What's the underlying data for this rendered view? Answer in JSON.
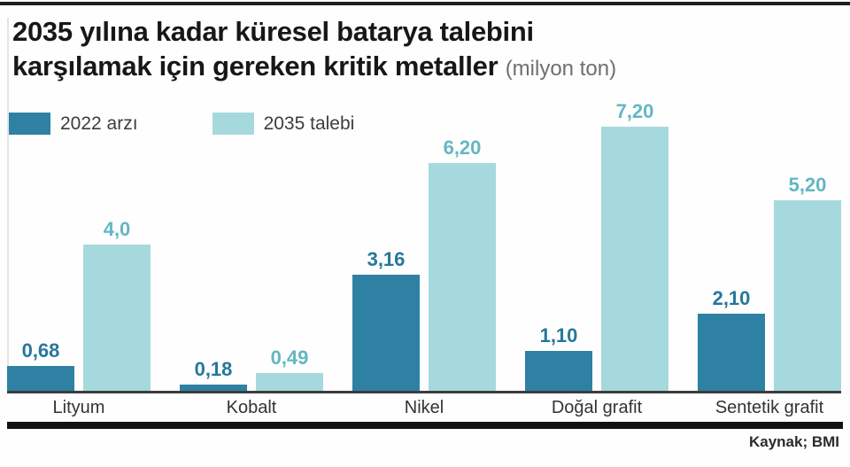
{
  "header": {
    "title_line1": "2035 yılına kadar küresel batarya talebini",
    "title_line2": "karşılamak için gereken kritik metaller",
    "title_unit": "(milyon ton)"
  },
  "footer": {
    "source": "Kaynak; BMI"
  },
  "colors": {
    "series_2022": "#2e81a3",
    "series_2035": "#a6d9de",
    "value_label_2022": "#26779c",
    "value_label_2035": "#63b7c2",
    "axis": "#3c3c3c",
    "rule": "#121212"
  },
  "chart_data": {
    "type": "bar",
    "title": "2035 yılına kadar küresel batarya talebini karşılamak için gereken kritik metaller (milyon ton)",
    "categories": [
      "Lityum",
      "Kobalt",
      "Nikel",
      "Doğal grafit",
      "Sentetik grafit"
    ],
    "series": [
      {
        "name": "2022 arzı",
        "color": "#2e81a3",
        "label_color": "#26779c",
        "values": [
          0.68,
          0.18,
          3.16,
          1.1,
          2.1
        ],
        "labels": [
          "0,68",
          "0,18",
          "3,16",
          "1,10",
          "2,10"
        ]
      },
      {
        "name": "2035 talebi",
        "color": "#a6d9de",
        "label_color": "#63b7c2",
        "values": [
          4.0,
          0.49,
          6.2,
          7.2,
          5.2
        ],
        "labels": [
          "4,0",
          "0,49",
          "6,20",
          "7,20",
          "5,20"
        ]
      }
    ],
    "xlabel": "",
    "ylabel": "milyon ton",
    "ylim": [
      0,
      8
    ],
    "grid": false,
    "legend_position": "top-left",
    "value_labels_shown": true
  }
}
